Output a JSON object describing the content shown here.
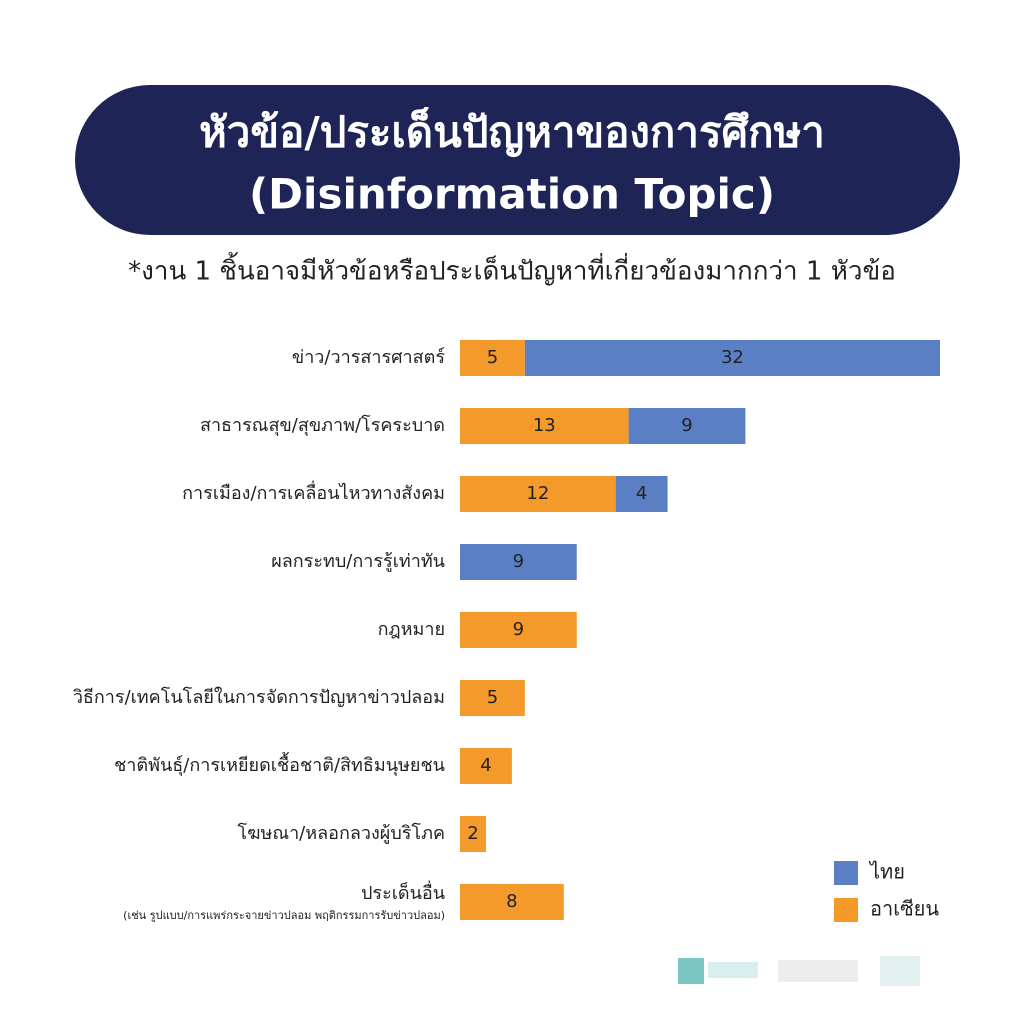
{
  "chart_data": {
    "type": "stacked-bar-horizontal",
    "title": "หัวข้อ/ประเด็นปัญหาของการศึกษา",
    "title_en": "(Disinformation Topic)",
    "subtitle": "*งาน 1 ชิ้นอาจมีหัวข้อหรือประเด็นปัญหาที่เกี่ยวข้องมากกว่า 1 หัวข้อ",
    "categories": [
      "ข่าว/วารสารศาสตร์",
      "สาธารณสุข/สุขภาพ/โรคระบาด",
      "การเมือง/การเคลื่อนไหวทางสังคม",
      "ผลกระทบ/การรู้เท่าทัน",
      "กฎหมาย",
      "วิธีการ/เทคโนโลยีในการจัดการปัญหาข่าวปลอม",
      "ชาติพันธุ์/การเหยียดเชื้อชาติ/สิทธิมนุษยชน",
      "โฆษณา/หลอกลวงผู้บริโภค",
      "ประเด็นอื่น"
    ],
    "last_category_note": "(เช่น รูปแบบ/การแพร่กระจายข่าวปลอม พฤติกรรมการรับข่าวปลอม)",
    "series": [
      {
        "name": "อาเซียน",
        "color": "#f39a2b",
        "values": [
          5,
          13,
          12,
          null,
          9,
          5,
          4,
          2,
          8
        ]
      },
      {
        "name": "ไทย",
        "color": "#5b7fc4",
        "values": [
          32,
          9,
          4,
          9,
          null,
          null,
          null,
          null,
          null
        ]
      }
    ],
    "legend": "lower right"
  }
}
